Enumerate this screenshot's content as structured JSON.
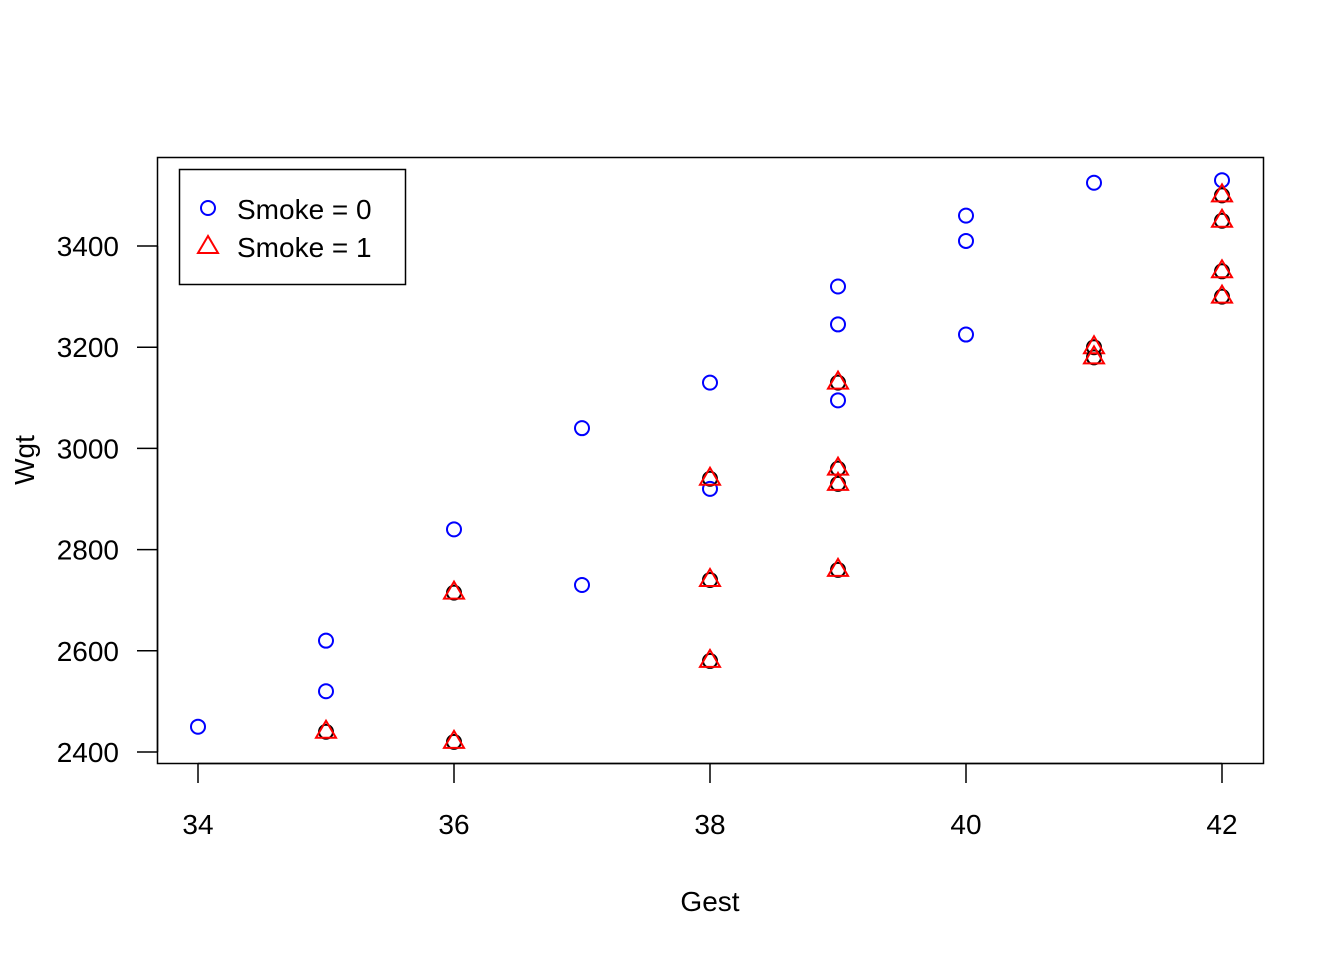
{
  "chart_data": {
    "type": "scatter",
    "title": "",
    "xlabel": "Gest",
    "ylabel": "Wgt",
    "xlim": [
      33.84,
      42.48
    ],
    "ylim": [
      2378,
      3578
    ],
    "xticks": [
      34,
      36,
      38,
      40,
      42
    ],
    "yticks": [
      2400,
      2600,
      2800,
      3000,
      3200,
      3400
    ],
    "grid": false,
    "legend_position": "top-left",
    "series": [
      {
        "name": "Smoke = 0",
        "color": "#0000ff",
        "marker": "circle",
        "points": [
          [
            34,
            2450
          ],
          [
            35,
            2620
          ],
          [
            35,
            2520
          ],
          [
            36,
            2840
          ],
          [
            37,
            3040
          ],
          [
            37,
            2730
          ],
          [
            38,
            3130
          ],
          [
            38,
            2920
          ],
          [
            39,
            3320
          ],
          [
            39,
            3245
          ],
          [
            39,
            3095
          ],
          [
            40,
            3460
          ],
          [
            40,
            3410
          ],
          [
            40,
            3225
          ],
          [
            41,
            3525
          ],
          [
            42,
            3530
          ]
        ]
      },
      {
        "name": "Smoke = 1",
        "color": "#ff0000",
        "marker": "triangle",
        "points": [
          [
            35,
            2440
          ],
          [
            36,
            2715
          ],
          [
            36,
            2420
          ],
          [
            38,
            2940
          ],
          [
            38,
            2740
          ],
          [
            38,
            2580
          ],
          [
            39,
            3130
          ],
          [
            39,
            2960
          ],
          [
            39,
            2930
          ],
          [
            39,
            2760
          ],
          [
            41,
            3200
          ],
          [
            41,
            3180
          ],
          [
            42,
            3500
          ],
          [
            42,
            3450
          ],
          [
            42,
            3350
          ],
          [
            42,
            3300
          ]
        ]
      }
    ]
  }
}
